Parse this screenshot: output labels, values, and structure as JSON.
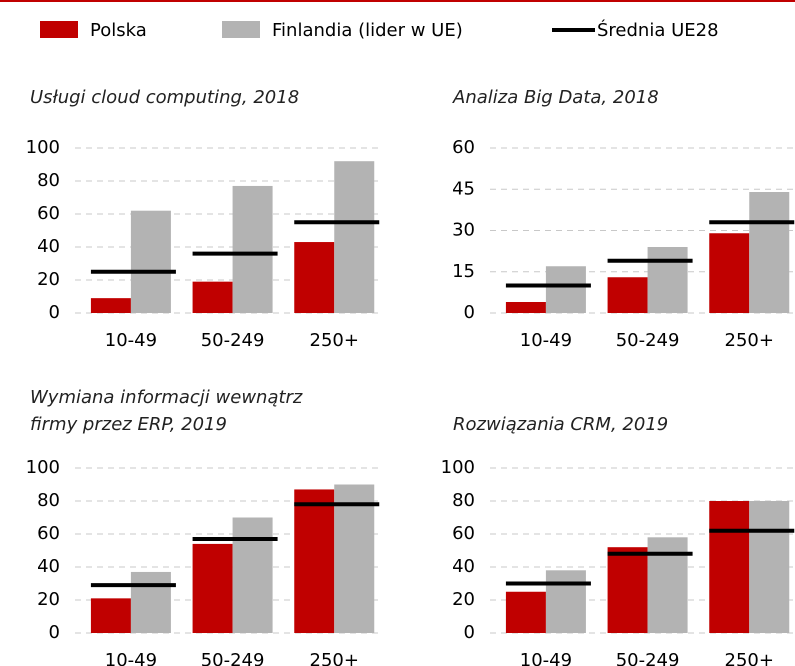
{
  "legend": [
    {
      "name": "Polska",
      "color": "#c00000"
    },
    {
      "name": "Finlandia (lider w UE)",
      "color": "#b3b3b3"
    },
    {
      "name": "Średnia UE28",
      "color": "#000000"
    }
  ],
  "chart_data": [
    {
      "type": "bar",
      "title": [
        "Usługi cloud computing, 2018"
      ],
      "categories": [
        "10-49",
        "50-249",
        "250+"
      ],
      "series": [
        {
          "values": [
            9,
            19,
            43
          ]
        },
        {
          "values": [
            62,
            77,
            92
          ]
        },
        {
          "values": [
            25,
            36,
            55
          ]
        }
      ],
      "ylim": [
        0,
        100
      ],
      "yticks": [
        0,
        20,
        40,
        60,
        80,
        100
      ],
      "grid": true
    },
    {
      "type": "bar",
      "title": [
        "Analiza Big Data, 2018"
      ],
      "categories": [
        "10-49",
        "50-249",
        "250+"
      ],
      "series": [
        {
          "values": [
            4,
            13,
            29
          ]
        },
        {
          "values": [
            17,
            24,
            44
          ]
        },
        {
          "values": [
            10,
            19,
            33
          ]
        }
      ],
      "ylim": [
        0,
        60
      ],
      "yticks": [
        0,
        15,
        30,
        45,
        60
      ],
      "grid": true
    },
    {
      "type": "bar",
      "title": [
        "Wymiana informacji wewnątrz",
        "firmy przez ERP, 2019"
      ],
      "categories": [
        "10-49",
        "50-249",
        "250+"
      ],
      "series": [
        {
          "values": [
            21,
            54,
            87
          ]
        },
        {
          "values": [
            37,
            70,
            90
          ]
        },
        {
          "values": [
            29,
            57,
            78
          ]
        }
      ],
      "ylim": [
        0,
        100
      ],
      "yticks": [
        0,
        20,
        40,
        60,
        80,
        100
      ],
      "grid": true
    },
    {
      "type": "bar",
      "title": [
        "Rozwiązania CRM, 2019"
      ],
      "categories": [
        "10-49",
        "50-249",
        "250+"
      ],
      "series": [
        {
          "values": [
            25,
            52,
            80
          ]
        },
        {
          "values": [
            38,
            58,
            80
          ]
        },
        {
          "values": [
            30,
            48,
            62
          ]
        }
      ],
      "ylim": [
        0,
        100
      ],
      "yticks": [
        0,
        20,
        40,
        60,
        80,
        100
      ],
      "grid": true
    }
  ]
}
